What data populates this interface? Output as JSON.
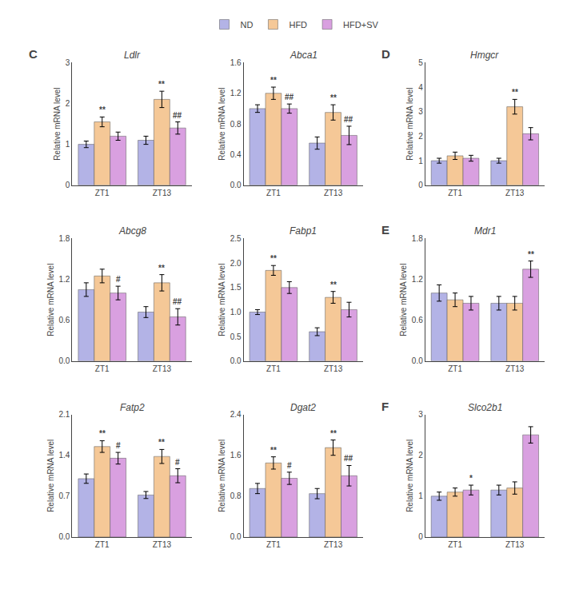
{
  "chart_data": [
    {
      "type": "bar",
      "title": "Ldlr",
      "ylabel": "Relative mRNA level",
      "categories": [
        "ZT1",
        "ZT13"
      ],
      "series": [
        {
          "name": "ND",
          "color": "#b3b3e6",
          "values": [
            1.0,
            1.1
          ],
          "errors": [
            0.08,
            0.1
          ]
        },
        {
          "name": "HFD",
          "color": "#f5c897",
          "values": [
            1.55,
            2.1
          ],
          "errors": [
            0.12,
            0.2
          ]
        },
        {
          "name": "HFD+SV",
          "color": "#d9a0e0",
          "values": [
            1.2,
            1.4
          ],
          "errors": [
            0.1,
            0.15
          ]
        }
      ],
      "ylim": [
        0,
        3
      ],
      "yticks": [
        0,
        1,
        2,
        3
      ],
      "grid": false,
      "legend": "top",
      "annotations": [
        {
          "text": "C"
        },
        {
          "text": "**",
          "category": "ZT1",
          "series": "HFD"
        },
        {
          "text": "**",
          "category": "ZT13",
          "series": "HFD"
        },
        {
          "text": "##",
          "category": "ZT13",
          "series": "HFD+SV"
        }
      ]
    },
    {
      "type": "bar",
      "title": "Abca1",
      "ylabel": "Relative mRNA level",
      "categories": [
        "ZT1",
        "ZT13"
      ],
      "series": [
        {
          "name": "ND",
          "color": "#b3b3e6",
          "values": [
            1.0,
            0.55
          ],
          "errors": [
            0.05,
            0.08
          ]
        },
        {
          "name": "HFD",
          "color": "#f5c897",
          "values": [
            1.2,
            0.95
          ],
          "errors": [
            0.08,
            0.1
          ]
        },
        {
          "name": "HFD+SV",
          "color": "#d9a0e0",
          "values": [
            1.0,
            0.65
          ],
          "errors": [
            0.06,
            0.12
          ]
        }
      ],
      "ylim": [
        0,
        1.6
      ],
      "yticks": [
        {
          "value": 0,
          "label": "0.0"
        },
        0.4,
        0.8,
        1.2,
        1.6
      ],
      "grid": false,
      "annotations": [
        {
          "text": "**",
          "category": "ZT1",
          "series": "HFD"
        },
        {
          "text": "**",
          "category": "ZT13",
          "series": "HFD"
        },
        {
          "text": "##",
          "category": "ZT1",
          "series": "HFD+SV"
        },
        {
          "text": "##",
          "category": "ZT13",
          "series": "HFD+SV"
        }
      ]
    },
    {
      "type": "bar",
      "title": "Abcg8",
      "ylabel": "Relative mRNA level",
      "categories": [
        "ZT1",
        "ZT13"
      ],
      "series": [
        {
          "name": "ND",
          "color": "#b3b3e6",
          "values": [
            1.05,
            0.72
          ],
          "errors": [
            0.1,
            0.08
          ]
        },
        {
          "name": "HFD",
          "color": "#f5c897",
          "values": [
            1.25,
            1.15
          ],
          "errors": [
            0.1,
            0.12
          ]
        },
        {
          "name": "HFD+SV",
          "color": "#d9a0e0",
          "values": [
            1.0,
            0.65
          ],
          "errors": [
            0.1,
            0.12
          ]
        }
      ],
      "ylim": [
        0,
        1.8
      ],
      "yticks": [
        {
          "value": 0,
          "label": "0.0"
        },
        0.6,
        1.2,
        1.8
      ],
      "grid": false,
      "annotations": [
        {
          "text": "**",
          "category": "ZT13",
          "series": "HFD"
        },
        {
          "text": "#",
          "category": "ZT1",
          "series": "HFD+SV"
        },
        {
          "text": "##",
          "category": "ZT13",
          "series": "HFD+SV"
        }
      ]
    },
    {
      "type": "bar",
      "title": "Fabp1",
      "ylabel": "Relative mRNA level",
      "categories": [
        "ZT1",
        "ZT13"
      ],
      "series": [
        {
          "name": "ND",
          "color": "#b3b3e6",
          "values": [
            1.0,
            0.6
          ],
          "errors": [
            0.05,
            0.08
          ]
        },
        {
          "name": "HFD",
          "color": "#f5c897",
          "values": [
            1.85,
            1.3
          ],
          "errors": [
            0.1,
            0.12
          ]
        },
        {
          "name": "HFD+SV",
          "color": "#d9a0e0",
          "values": [
            1.5,
            1.05
          ],
          "errors": [
            0.12,
            0.15
          ]
        }
      ],
      "ylim": [
        0,
        2.5
      ],
      "yticks": [
        {
          "value": 0,
          "label": "0.0"
        },
        0.5,
        {
          "value": 1,
          "label": "1.0"
        },
        1.5,
        {
          "value": 2,
          "label": "2.0"
        },
        2.5
      ],
      "grid": false,
      "annotations": [
        {
          "text": "**",
          "category": "ZT1",
          "series": "HFD"
        },
        {
          "text": "**",
          "category": "ZT13",
          "series": "HFD"
        }
      ]
    },
    {
      "type": "bar",
      "title": "Fatp2",
      "ylabel": "Relative mRNA level",
      "categories": [
        "ZT1",
        "ZT13"
      ],
      "series": [
        {
          "name": "ND",
          "color": "#b3b3e6",
          "values": [
            1.0,
            0.72
          ],
          "errors": [
            0.08,
            0.06
          ]
        },
        {
          "name": "HFD",
          "color": "#f5c897",
          "values": [
            1.55,
            1.38
          ],
          "errors": [
            0.1,
            0.12
          ]
        },
        {
          "name": "HFD+SV",
          "color": "#d9a0e0",
          "values": [
            1.35,
            1.05
          ],
          "errors": [
            0.1,
            0.12
          ]
        }
      ],
      "ylim": [
        0,
        2.1
      ],
      "yticks": [
        {
          "value": 0,
          "label": "0.0"
        },
        0.7,
        1.4,
        2.1
      ],
      "grid": false,
      "annotations": [
        {
          "text": "**",
          "category": "ZT1",
          "series": "HFD"
        },
        {
          "text": "**",
          "category": "ZT13",
          "series": "HFD"
        },
        {
          "text": "#",
          "category": "ZT1",
          "series": "HFD+SV"
        },
        {
          "text": "#",
          "category": "ZT13",
          "series": "HFD+SV"
        }
      ]
    },
    {
      "type": "bar",
      "title": "Dgat2",
      "ylabel": "Relative mRNA level",
      "categories": [
        "ZT1",
        "ZT13"
      ],
      "series": [
        {
          "name": "ND",
          "color": "#b3b3e6",
          "values": [
            0.95,
            0.85
          ],
          "errors": [
            0.1,
            0.1
          ]
        },
        {
          "name": "HFD",
          "color": "#f5c897",
          "values": [
            1.45,
            1.75
          ],
          "errors": [
            0.12,
            0.15
          ]
        },
        {
          "name": "HFD+SV",
          "color": "#d9a0e0",
          "values": [
            1.15,
            1.2
          ],
          "errors": [
            0.12,
            0.2
          ]
        }
      ],
      "ylim": [
        0,
        2.4
      ],
      "yticks": [
        {
          "value": 0,
          "label": "0.0"
        },
        0.8,
        1.6,
        2.4
      ],
      "grid": false,
      "annotations": [
        {
          "text": "**",
          "category": "ZT1",
          "series": "HFD"
        },
        {
          "text": "**",
          "category": "ZT13",
          "series": "HFD"
        },
        {
          "text": "#",
          "category": "ZT1",
          "series": "HFD+SV"
        },
        {
          "text": "##",
          "category": "ZT13",
          "series": "HFD+SV"
        }
      ]
    },
    {
      "type": "bar",
      "title": "Hmgcr",
      "ylabel": "Relative mRNA level",
      "categories": [
        "ZT1",
        "ZT13"
      ],
      "series": [
        {
          "name": "ND",
          "color": "#b3b3e6",
          "values": [
            1.0,
            1.0
          ],
          "errors": [
            0.1,
            0.1
          ]
        },
        {
          "name": "HFD",
          "color": "#f5c897",
          "values": [
            1.2,
            3.2
          ],
          "errors": [
            0.15,
            0.3
          ]
        },
        {
          "name": "HFD+SV",
          "color": "#d9a0e0",
          "values": [
            1.1,
            2.1
          ],
          "errors": [
            0.12,
            0.25
          ]
        }
      ],
      "ylim": [
        0,
        5
      ],
      "yticks": [
        0,
        1,
        2,
        3,
        4,
        5
      ],
      "grid": false,
      "annotations": [
        {
          "text": "D"
        },
        {
          "text": "**",
          "category": "ZT13",
          "series": "HFD"
        }
      ]
    },
    {
      "type": "bar",
      "title": "Mdr1",
      "ylabel": "Relative mRNA level",
      "categories": [
        "ZT1",
        "ZT13"
      ],
      "series": [
        {
          "name": "ND",
          "color": "#b3b3e6",
          "values": [
            1.0,
            0.85
          ],
          "errors": [
            0.12,
            0.1
          ]
        },
        {
          "name": "HFD",
          "color": "#f5c897",
          "values": [
            0.9,
            0.85
          ],
          "errors": [
            0.1,
            0.1
          ]
        },
        {
          "name": "HFD+SV",
          "color": "#d9a0e0",
          "values": [
            0.85,
            1.35
          ],
          "errors": [
            0.1,
            0.12
          ]
        }
      ],
      "ylim": [
        0,
        1.8
      ],
      "yticks": [
        {
          "value": 0,
          "label": "0.0"
        },
        0.6,
        1.2,
        1.8
      ],
      "grid": false,
      "annotations": [
        {
          "text": "E"
        },
        {
          "text": "**",
          "category": "ZT13",
          "series": "HFD+SV"
        }
      ]
    },
    {
      "type": "bar",
      "title": "Slco2b1",
      "ylabel": "Relative mRNA level",
      "categories": [
        "ZT1",
        "ZT13"
      ],
      "series": [
        {
          "name": "ND",
          "color": "#b3b3e6",
          "values": [
            1.0,
            1.15
          ],
          "errors": [
            0.1,
            0.12
          ]
        },
        {
          "name": "HFD",
          "color": "#f5c897",
          "values": [
            1.1,
            1.2
          ],
          "errors": [
            0.1,
            0.15
          ]
        },
        {
          "name": "HFD+SV",
          "color": "#d9a0e0",
          "values": [
            1.15,
            2.5
          ],
          "errors": [
            0.12,
            0.2
          ]
        }
      ],
      "ylim": [
        0,
        3
      ],
      "yticks": [
        0,
        1,
        2,
        3
      ],
      "grid": false,
      "annotations": [
        {
          "text": "F"
        },
        {
          "text": "*",
          "category": "ZT1",
          "series": "HFD+SV"
        }
      ]
    }
  ]
}
